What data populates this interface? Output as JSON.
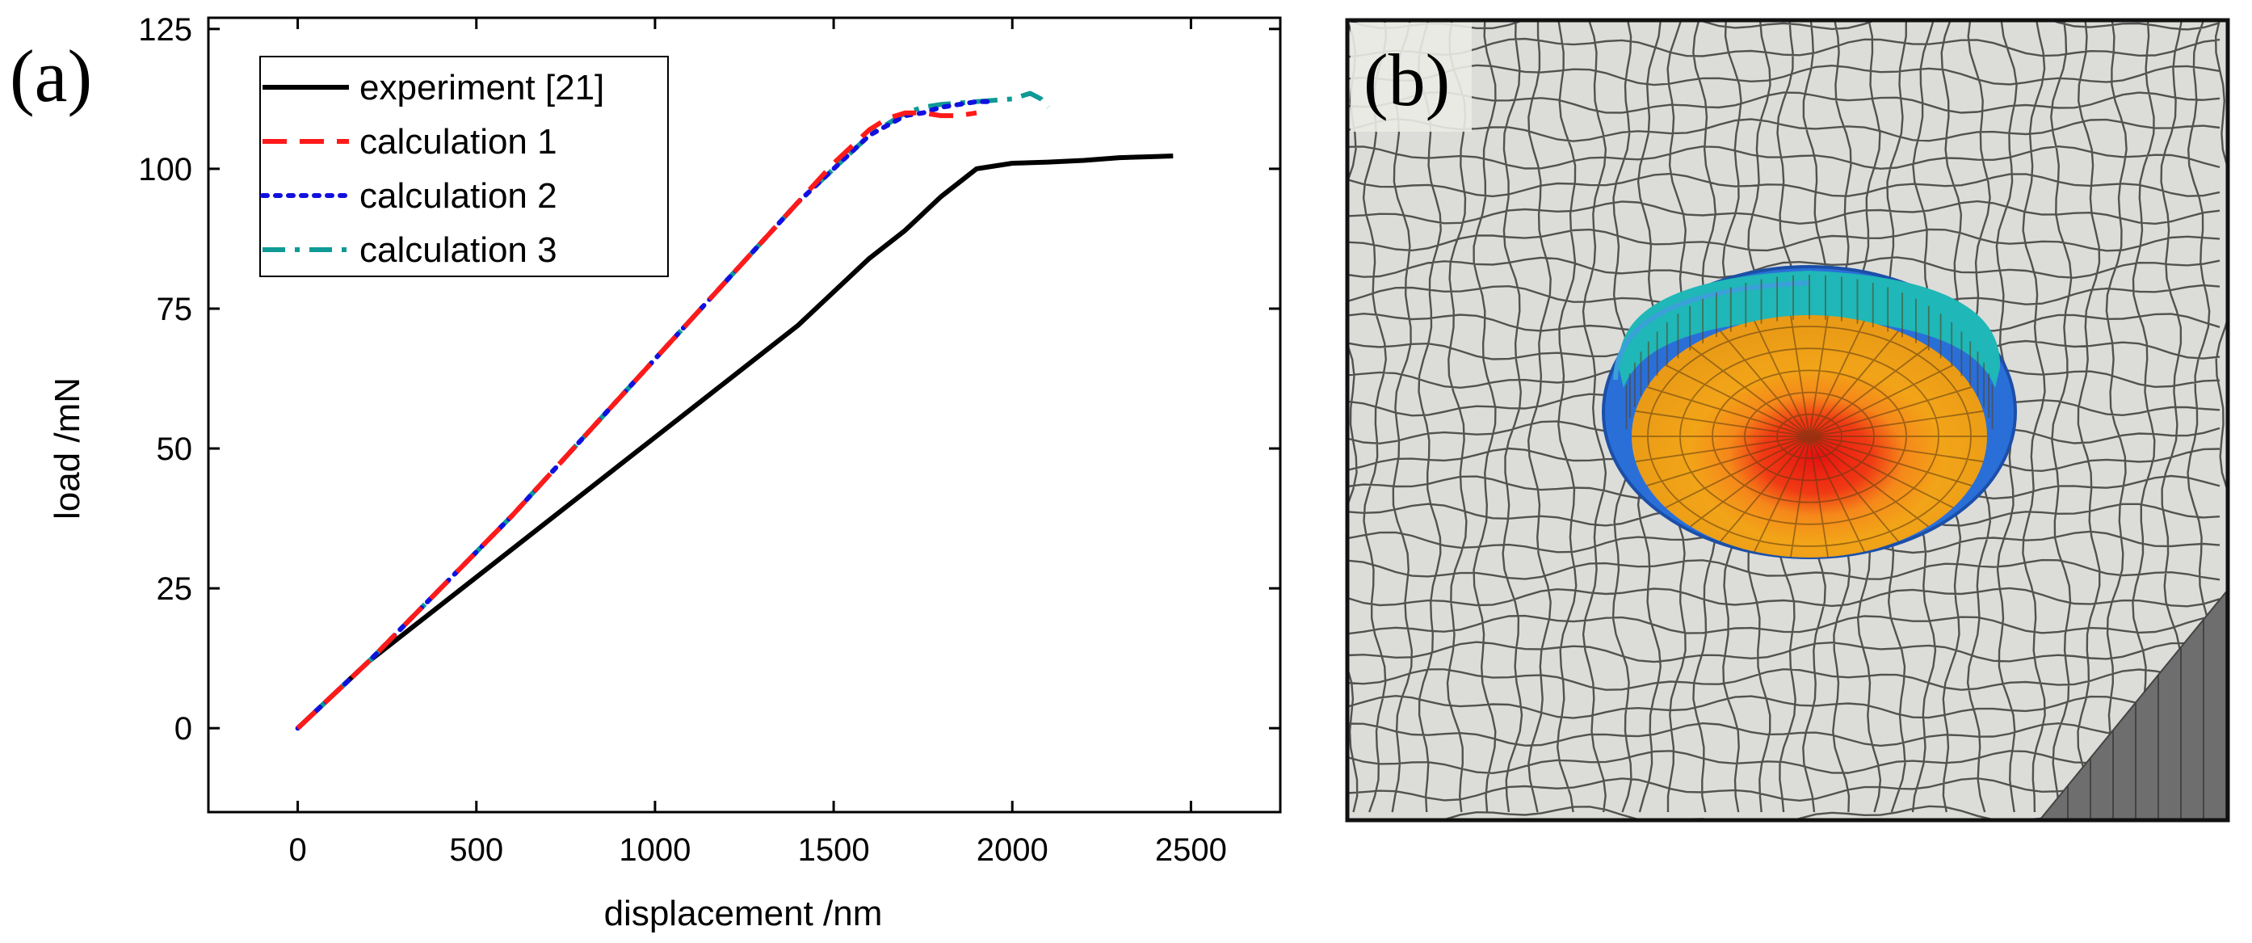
{
  "panel_a": {
    "label": "(a)"
  },
  "panel_b": {
    "label": "(b)"
  },
  "colors": {
    "experiment": "#000000",
    "calculation_1": "#ff1a1a",
    "calculation_2": "#1010e0",
    "calculation_3": "#0f9a96",
    "mesh_face": "#dcdcd8",
    "mesh_line": "#3a3a3a",
    "crater_red": "#ee1a10",
    "crater_orange": "#f2a418",
    "crater_teal": "#1fb7b7",
    "crater_blue": "#2a6fd8"
  },
  "chart_data": [
    {
      "type": "line",
      "title": "",
      "xlabel": "displacement /nm",
      "ylabel": "load /mN",
      "xlim": [
        -250,
        2750
      ],
      "ylim": [
        -15,
        127
      ],
      "xticks": [
        0,
        500,
        1000,
        1500,
        2000,
        2500
      ],
      "yticks": [
        0,
        25,
        50,
        75,
        100,
        125
      ],
      "x_tick_labels": [
        "0",
        "500",
        "1000",
        "1500",
        "2000",
        "2500"
      ],
      "y_tick_labels": [
        "0",
        "25",
        "50",
        "75",
        "100",
        "125"
      ],
      "grid": false,
      "legend_position": "top-left",
      "series": [
        {
          "name": "experiment [21]",
          "style": "solid",
          "x": [
            0,
            200,
            400,
            600,
            800,
            1000,
            1100,
            1200,
            1300,
            1400,
            1500,
            1600,
            1700,
            1800,
            1900,
            2000,
            2100,
            2200,
            2300,
            2400,
            2450
          ],
          "y": [
            0,
            12,
            22,
            32,
            42,
            52,
            57,
            62,
            67,
            72,
            78,
            84,
            89,
            95,
            100,
            101,
            101.2,
            101.5,
            102,
            102.2,
            102.3
          ]
        },
        {
          "name": "calculation 1",
          "style": "dashed",
          "x": [
            0,
            100,
            200,
            400,
            600,
            800,
            1000,
            1200,
            1400,
            1500,
            1600,
            1650,
            1700,
            1750,
            1800,
            1850,
            1900
          ],
          "y": [
            0,
            6,
            12,
            25,
            38,
            52,
            66,
            80,
            94,
            101,
            107,
            109,
            110,
            110,
            109.5,
            109.5,
            110
          ]
        },
        {
          "name": "calculation 2",
          "style": "dotted",
          "x": [
            0,
            100,
            200,
            400,
            600,
            800,
            1000,
            1200,
            1400,
            1500,
            1600,
            1700,
            1750,
            1800,
            1900,
            1950
          ],
          "y": [
            0,
            6,
            12,
            25,
            38,
            52,
            66,
            80,
            94,
            100,
            106,
            109.5,
            110,
            111,
            112,
            112
          ]
        },
        {
          "name": "calculation 3",
          "style": "dash-dot",
          "x": [
            0,
            100,
            200,
            400,
            600,
            800,
            1000,
            1200,
            1400,
            1500,
            1600,
            1700,
            1750,
            1800,
            1900,
            2000,
            2050,
            2080,
            2100
          ],
          "y": [
            0,
            6,
            12,
            25,
            38,
            52,
            66,
            80,
            94,
            100,
            106,
            110,
            111,
            111.5,
            112,
            112.5,
            113.5,
            112.5,
            111
          ]
        }
      ]
    }
  ]
}
